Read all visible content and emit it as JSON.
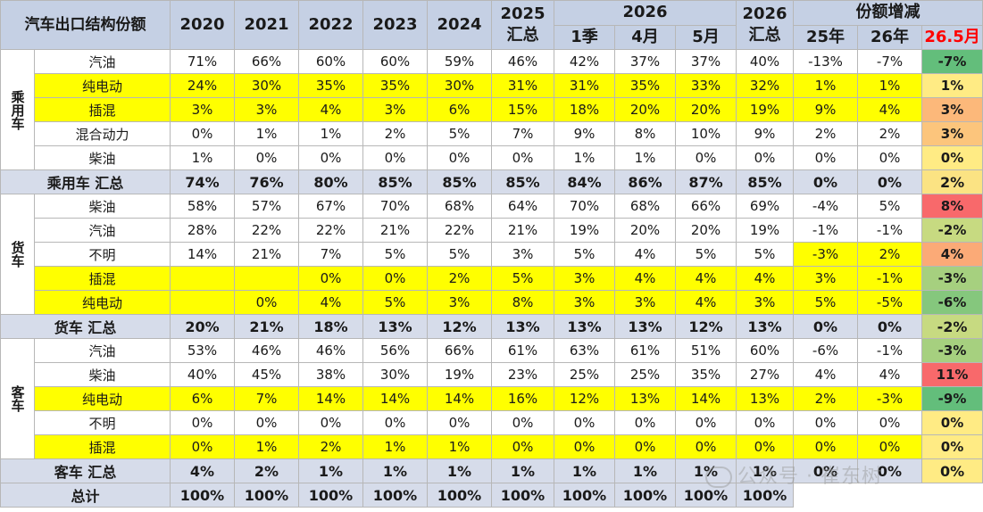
{
  "header": {
    "title": "汽车出口结构份额",
    "years": [
      "2020",
      "2021",
      "2022",
      "2023",
      "2024"
    ],
    "y2025": [
      "2025",
      "汇总"
    ],
    "y2026": "2026",
    "sub2026": [
      "1季",
      "4月",
      "5月"
    ],
    "total2026": [
      "2026",
      "汇总"
    ],
    "change_title": "份额增减",
    "change_cols": [
      "25年",
      "26年",
      "26.5月"
    ]
  },
  "sections": [
    {
      "cat": "乘用车",
      "rows": [
        {
          "label": "汽油",
          "yellow": false,
          "v": [
            "71%",
            "66%",
            "60%",
            "60%",
            "59%",
            "46%",
            "42%",
            "37%",
            "37%",
            "40%",
            "-13%",
            "-7%",
            "-7%"
          ]
        },
        {
          "label": "纯电动",
          "yellow": true,
          "v": [
            "24%",
            "30%",
            "35%",
            "35%",
            "30%",
            "31%",
            "31%",
            "35%",
            "33%",
            "32%",
            "1%",
            "1%",
            "1%"
          ]
        },
        {
          "label": "插混",
          "yellow": true,
          "v": [
            "3%",
            "3%",
            "4%",
            "3%",
            "6%",
            "15%",
            "18%",
            "20%",
            "20%",
            "19%",
            "9%",
            "4%",
            "3%"
          ]
        },
        {
          "label": "混合动力",
          "yellow": false,
          "v": [
            "0%",
            "1%",
            "1%",
            "2%",
            "5%",
            "7%",
            "9%",
            "8%",
            "10%",
            "9%",
            "2%",
            "2%",
            "3%"
          ]
        },
        {
          "label": "柴油",
          "yellow": false,
          "v": [
            "1%",
            "0%",
            "0%",
            "0%",
            "0%",
            "0%",
            "1%",
            "1%",
            "0%",
            "0%",
            "0%",
            "0%",
            "0%"
          ]
        }
      ],
      "subtotal": {
        "label": "乘用车 汇总",
        "v": [
          "74%",
          "76%",
          "80%",
          "85%",
          "85%",
          "85%",
          "84%",
          "86%",
          "87%",
          "85%",
          "0%",
          "0%",
          "2%"
        ]
      }
    },
    {
      "cat": "货车",
      "rows": [
        {
          "label": "柴油",
          "yellow": false,
          "v": [
            "58%",
            "57%",
            "67%",
            "70%",
            "68%",
            "64%",
            "70%",
            "68%",
            "66%",
            "69%",
            "-4%",
            "5%",
            "8%"
          ]
        },
        {
          "label": "汽油",
          "yellow": false,
          "v": [
            "28%",
            "22%",
            "22%",
            "21%",
            "22%",
            "21%",
            "19%",
            "20%",
            "20%",
            "19%",
            "-1%",
            "-1%",
            "-2%"
          ]
        },
        {
          "label": "不明",
          "yellow": false,
          "v": [
            "14%",
            "21%",
            "7%",
            "5%",
            "5%",
            "3%",
            "5%",
            "4%",
            "5%",
            "5%",
            "-3%",
            "2%",
            "4%"
          ]
        },
        {
          "label": "插混",
          "yellow": true,
          "v": [
            "",
            "",
            "0%",
            "0%",
            "2%",
            "5%",
            "3%",
            "4%",
            "4%",
            "4%",
            "3%",
            "-1%",
            "-3%"
          ]
        },
        {
          "label": "纯电动",
          "yellow": true,
          "v": [
            "",
            "0%",
            "4%",
            "5%",
            "3%",
            "8%",
            "3%",
            "3%",
            "4%",
            "3%",
            "5%",
            "-5%",
            "-6%"
          ]
        }
      ],
      "subtotal": {
        "label": "货车 汇总",
        "v": [
          "20%",
          "21%",
          "18%",
          "13%",
          "12%",
          "13%",
          "13%",
          "13%",
          "12%",
          "13%",
          "0%",
          "0%",
          "-2%"
        ]
      }
    },
    {
      "cat": "客车",
      "rows": [
        {
          "label": "汽油",
          "yellow": false,
          "v": [
            "53%",
            "46%",
            "46%",
            "56%",
            "66%",
            "61%",
            "63%",
            "61%",
            "51%",
            "60%",
            "-6%",
            "-1%",
            "-3%"
          ]
        },
        {
          "label": "柴油",
          "yellow": false,
          "v": [
            "40%",
            "45%",
            "38%",
            "30%",
            "19%",
            "23%",
            "25%",
            "25%",
            "35%",
            "27%",
            "4%",
            "4%",
            "11%"
          ]
        },
        {
          "label": "纯电动",
          "yellow": true,
          "v": [
            "6%",
            "7%",
            "14%",
            "14%",
            "14%",
            "16%",
            "12%",
            "13%",
            "14%",
            "13%",
            "2%",
            "-3%",
            "-9%"
          ]
        },
        {
          "label": "不明",
          "yellow": false,
          "v": [
            "0%",
            "0%",
            "0%",
            "0%",
            "0%",
            "0%",
            "0%",
            "0%",
            "0%",
            "0%",
            "0%",
            "0%",
            "0%"
          ]
        },
        {
          "label": "插混",
          "yellow": true,
          "v": [
            "0%",
            "1%",
            "2%",
            "1%",
            "1%",
            "0%",
            "0%",
            "0%",
            "0%",
            "0%",
            "0%",
            "0%",
            "0%"
          ]
        }
      ],
      "subtotal": {
        "label": "客车 汇总",
        "v": [
          "4%",
          "2%",
          "1%",
          "1%",
          "1%",
          "1%",
          "1%",
          "1%",
          "1%",
          "1%",
          "0%",
          "0%",
          "0%"
        ]
      }
    }
  ],
  "total": {
    "label": "总计",
    "v": [
      "100%",
      "100%",
      "100%",
      "100%",
      "100%",
      "100%",
      "100%",
      "100%",
      "100%",
      "100%"
    ]
  },
  "heat_colors": {
    "乘用车.0": "#63be7b",
    "乘用车.1": "#ffeb84",
    "乘用车.2": "#fcb87a",
    "乘用车.3": "#fcc57c",
    "乘用车.4": "#ffeb84",
    "乘用车.sub": "#fbe383",
    "货车.0": "#f8696b",
    "货车.1": "#c7da81",
    "货车.2": "#fbaa77",
    "货车.3": "#a6d07f",
    "货车.4": "#85c77d",
    "货车.sub": "#c7da81",
    "客车.0": "#a6d07f",
    "客车.1": "#f8696b",
    "客车.2": "#63be7b",
    "客车.3": "#ffeb84",
    "客车.4": "#ffeb84",
    "客车.sub": "#ffeb84"
  },
  "highlight_cells": [
    "货车.2.10",
    "货车.2.11"
  ],
  "watermark": "公众号 · 崔东树"
}
